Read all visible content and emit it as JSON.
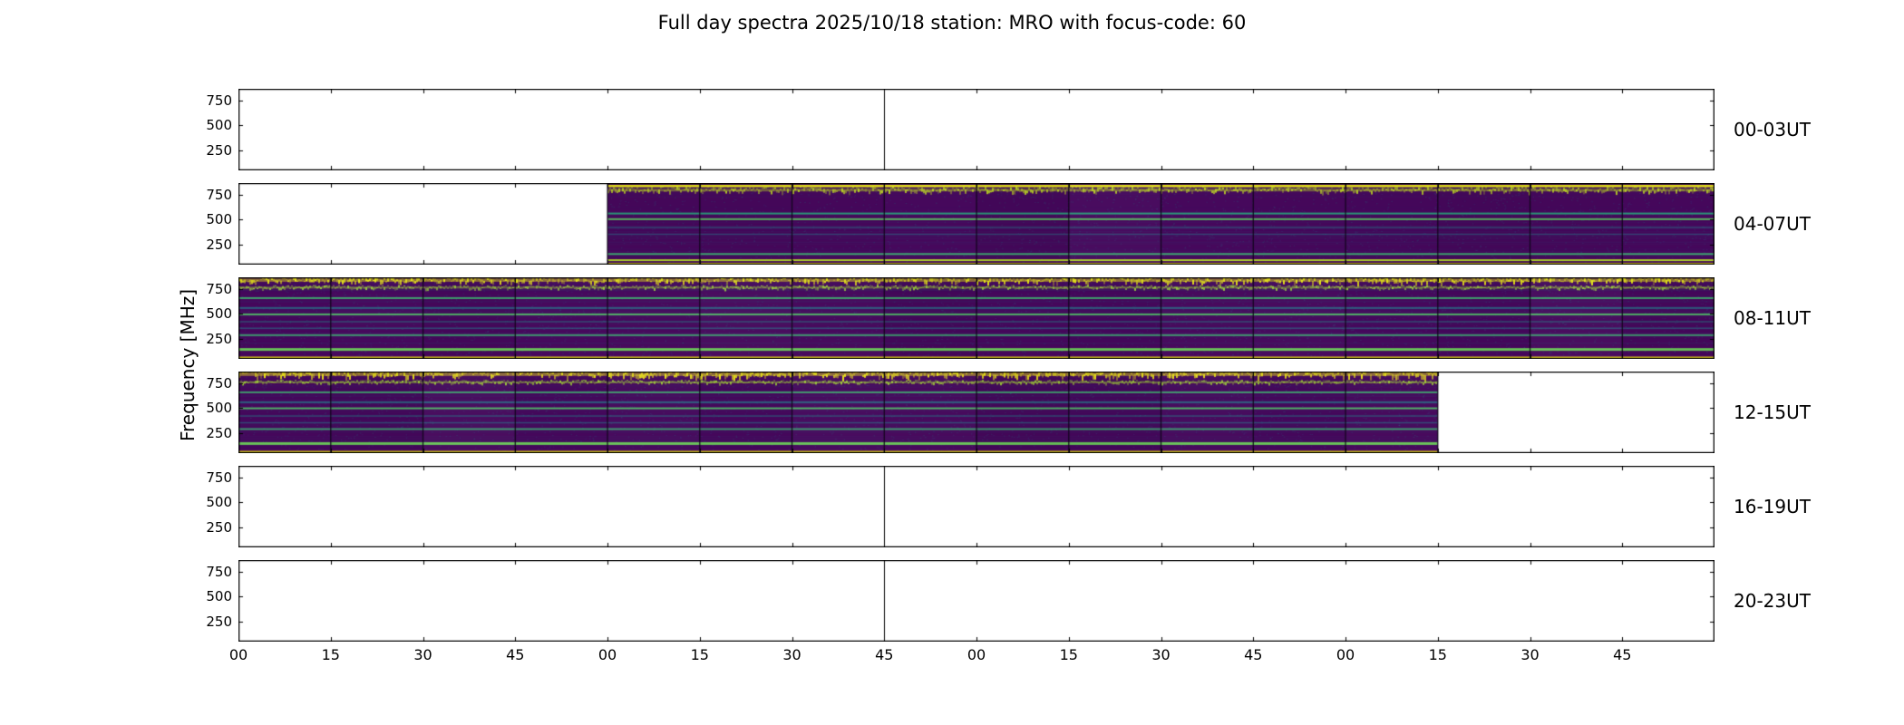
{
  "chart_data": {
    "type": "heatmap",
    "title": "Full day spectra 2025/10/18 station: MRO with focus-code: 60",
    "ylabel": "Frequency [MHz]",
    "xlabel": "",
    "colormap": "viridis",
    "background_hex": "#46085c",
    "empty_hex": "#ffffff",
    "freq_range_mhz": [
      45,
      870
    ],
    "y_ticks_mhz": [
      250,
      500,
      750
    ],
    "minutes_per_row": 240,
    "hours_per_row": 4,
    "segment_minutes": 15,
    "x_tick_labels": [
      "00",
      "15",
      "30",
      "45",
      "00",
      "15",
      "30",
      "45",
      "00",
      "15",
      "30",
      "45",
      "00",
      "15",
      "30",
      "45"
    ],
    "rows": [
      {
        "label": "00-03UT",
        "data_start_min": null,
        "data_end_min": null,
        "stray_line_min": 105,
        "bands": []
      },
      {
        "label": "04-07UT",
        "data_start_min": 60,
        "data_end_min": 240,
        "stray_line_min": null,
        "bands": [
          {
            "freq_mhz": 840,
            "color": "#e7e41c",
            "thickness_px": 2.5,
            "alpha": 1,
            "speckle": false
          },
          {
            "freq_mhz": 790,
            "color": "#c2df23",
            "thickness_px": 5,
            "alpha": 0.9,
            "speckle": true
          },
          {
            "freq_mhz": 562,
            "color": "#2ab07f",
            "thickness_px": 2,
            "alpha": 0.85,
            "speckle": false
          },
          {
            "freq_mhz": 505,
            "color": "#5ec962",
            "thickness_px": 2,
            "alpha": 0.9,
            "speckle": false
          },
          {
            "freq_mhz": 420,
            "color": "#26828e",
            "thickness_px": 1.5,
            "alpha": 0.5,
            "speckle": false
          },
          {
            "freq_mhz": 352,
            "color": "#26828e",
            "thickness_px": 1.5,
            "alpha": 0.5,
            "speckle": false
          },
          {
            "freq_mhz": 152,
            "color": "#3dbc74",
            "thickness_px": 2,
            "alpha": 0.9,
            "speckle": false
          },
          {
            "freq_mhz": 90,
            "color": "#b5de2b",
            "thickness_px": 2,
            "alpha": 0.95,
            "speckle": false
          },
          {
            "freq_mhz": 52,
            "color": "#f4e61e",
            "thickness_px": 2.5,
            "alpha": 1,
            "speckle": false
          }
        ]
      },
      {
        "label": "08-11UT",
        "data_start_min": 0,
        "data_end_min": 240,
        "stray_line_min": null,
        "bands": [
          {
            "freq_mhz": 830,
            "color": "#e5e419",
            "thickness_px": 6,
            "alpha": 1,
            "speckle": true
          },
          {
            "freq_mhz": 760,
            "color": "#a0da39",
            "thickness_px": 3.5,
            "alpha": 0.9,
            "speckle": true
          },
          {
            "freq_mhz": 660,
            "color": "#40bd72",
            "thickness_px": 2,
            "alpha": 0.85,
            "speckle": false
          },
          {
            "freq_mhz": 560,
            "color": "#26828e",
            "thickness_px": 2,
            "alpha": 0.7,
            "speckle": false
          },
          {
            "freq_mhz": 495,
            "color": "#52c569",
            "thickness_px": 2,
            "alpha": 0.9,
            "speckle": false
          },
          {
            "freq_mhz": 420,
            "color": "#21918c",
            "thickness_px": 1.5,
            "alpha": 0.45,
            "speckle": false
          },
          {
            "freq_mhz": 355,
            "color": "#26828e",
            "thickness_px": 1.5,
            "alpha": 0.55,
            "speckle": false
          },
          {
            "freq_mhz": 285,
            "color": "#3dbc74",
            "thickness_px": 2,
            "alpha": 0.8,
            "speckle": false
          },
          {
            "freq_mhz": 140,
            "color": "#6ccd5a",
            "thickness_px": 3,
            "alpha": 0.95,
            "speckle": false
          },
          {
            "freq_mhz": 56,
            "color": "#f1e51d",
            "thickness_px": 2.5,
            "alpha": 1,
            "speckle": false
          }
        ]
      },
      {
        "label": "12-15UT",
        "data_start_min": 0,
        "data_end_min": 195,
        "stray_line_min": null,
        "bands": [
          {
            "freq_mhz": 832,
            "color": "#ece51b",
            "thickness_px": 7,
            "alpha": 1,
            "speckle": true
          },
          {
            "freq_mhz": 755,
            "color": "#a5db36",
            "thickness_px": 3.5,
            "alpha": 0.9,
            "speckle": true
          },
          {
            "freq_mhz": 660,
            "color": "#40bd72",
            "thickness_px": 2,
            "alpha": 0.8,
            "speckle": false
          },
          {
            "freq_mhz": 560,
            "color": "#26828e",
            "thickness_px": 2,
            "alpha": 0.7,
            "speckle": false
          },
          {
            "freq_mhz": 498,
            "color": "#52c569",
            "thickness_px": 2,
            "alpha": 0.9,
            "speckle": false
          },
          {
            "freq_mhz": 420,
            "color": "#21918c",
            "thickness_px": 1.5,
            "alpha": 0.45,
            "speckle": false
          },
          {
            "freq_mhz": 352,
            "color": "#26828e",
            "thickness_px": 1.5,
            "alpha": 0.55,
            "speckle": false
          },
          {
            "freq_mhz": 288,
            "color": "#3dbc74",
            "thickness_px": 2,
            "alpha": 0.8,
            "speckle": false
          },
          {
            "freq_mhz": 142,
            "color": "#6ccd5a",
            "thickness_px": 3,
            "alpha": 0.95,
            "speckle": false
          },
          {
            "freq_mhz": 56,
            "color": "#f1e51d",
            "thickness_px": 2.5,
            "alpha": 1,
            "speckle": false
          }
        ]
      },
      {
        "label": "16-19UT",
        "data_start_min": null,
        "data_end_min": null,
        "stray_line_min": 105,
        "bands": []
      },
      {
        "label": "20-23UT",
        "data_start_min": null,
        "data_end_min": null,
        "stray_line_min": 105,
        "bands": []
      }
    ]
  }
}
